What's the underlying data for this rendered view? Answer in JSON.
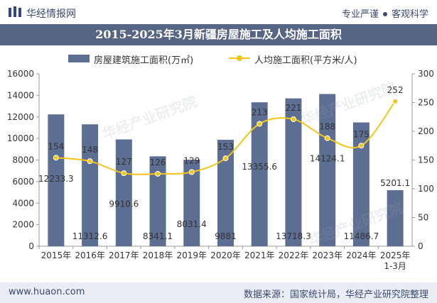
{
  "header": {
    "brand": "华经情报网",
    "tag1": "专业严谨",
    "tag2": "客观科学",
    "title": "2015-2025年3月新疆房屋施工及人均施工面积"
  },
  "legend": {
    "bar": "房屋建筑施工面积(万㎡)",
    "line": "人均施工面积(平方米/人)"
  },
  "footer": {
    "site": "www.huaon.com",
    "source": "数据来源：国家统计局，华经产业研究院整理"
  },
  "watermark": "华经产业研究院",
  "colors": {
    "bar": "#5d6e93",
    "line": "#f5c518",
    "title_bg": "#566584",
    "footer_bg": "#e9ecf3"
  },
  "chart_data": {
    "type": "bar",
    "categories": [
      "2015年",
      "2016年",
      "2017年",
      "2018年",
      "2019年",
      "2020年",
      "2021年",
      "2022年",
      "2023年",
      "2024年",
      "2025年\n1-3月"
    ],
    "series": [
      {
        "name": "房屋建筑施工面积(万㎡)",
        "type": "bar",
        "axis": "left",
        "values": [
          12233.3,
          11312.6,
          9910.6,
          8341.1,
          8031.4,
          9881,
          13355.6,
          13718.3,
          14124.1,
          11486.7,
          5201.1
        ]
      },
      {
        "name": "人均施工面积(平方米/人)",
        "type": "line",
        "axis": "right",
        "smooth": true,
        "values": [
          154,
          148,
          127,
          126,
          129,
          153,
          213,
          221,
          188,
          175,
          252
        ]
      }
    ],
    "y_left": {
      "range": [
        0,
        16000
      ],
      "ticks": [
        "0",
        "2000",
        "4000",
        "6000",
        "8000",
        "10000",
        "12000",
        "14000",
        "16000"
      ]
    },
    "y_right": {
      "range": [
        0,
        300
      ],
      "ticks": [
        "0",
        "50",
        "100",
        "150",
        "200",
        "250",
        "300"
      ]
    },
    "legend_position": "top",
    "grid": false
  }
}
